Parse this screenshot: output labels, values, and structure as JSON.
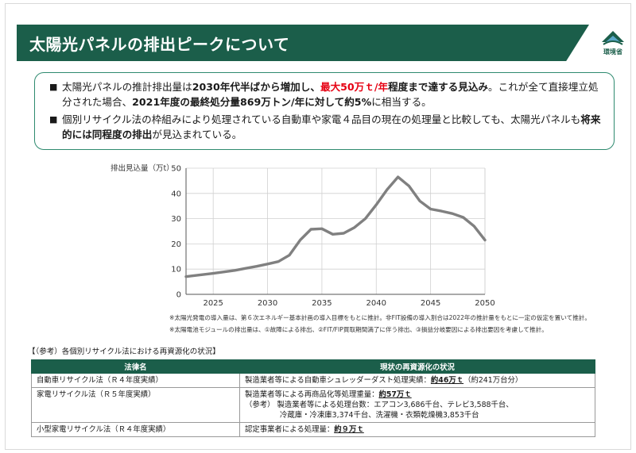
{
  "title": "太陽光パネルの排出ピークについて",
  "logo_label": "環境省",
  "bullets": [
    {
      "parts": [
        {
          "t": "太陽光パネルの推計排出量は",
          "s": "n"
        },
        {
          "t": "2030年代半ばから増加し、",
          "s": "b"
        },
        {
          "t": "最大50万ｔ/年",
          "s": "r"
        },
        {
          "t": "程度まで達する見込み",
          "s": "b"
        },
        {
          "t": "。これが全て直接埋立処分された場合、",
          "s": "n"
        },
        {
          "t": "2021年度の最終処分量869万トン/年に対して約5%",
          "s": "b"
        },
        {
          "t": "に相当する。",
          "s": "n"
        }
      ]
    },
    {
      "parts": [
        {
          "t": "個別リサイクル法の枠組みにより処理されている自動車や家電４品目の現在の処理量と比較しても、太陽光パネルも",
          "s": "n"
        },
        {
          "t": "将来的には同程度の排出",
          "s": "b"
        },
        {
          "t": "が見込まれている。",
          "s": "n"
        }
      ]
    }
  ],
  "chart_data": {
    "type": "line",
    "ylabel": "排出見込量（万t）",
    "xlabel": "",
    "xlim": [
      2022.5,
      2050
    ],
    "ylim": [
      0,
      50
    ],
    "xticks": [
      2025,
      2030,
      2035,
      2040,
      2045,
      2050
    ],
    "yticks": [
      0,
      10,
      20,
      30,
      40,
      50
    ],
    "grid": true,
    "series": [
      {
        "color": "#808080",
        "x": [
          2022.5,
          2023,
          2024,
          2025,
          2026,
          2027,
          2028,
          2029,
          2030,
          2031,
          2032,
          2033,
          2034,
          2035,
          2036,
          2037,
          2038,
          2039,
          2040,
          2041,
          2042,
          2043,
          2044,
          2045,
          2046,
          2047,
          2048,
          2049,
          2050
        ],
        "y": [
          7,
          7.3,
          7.8,
          8.3,
          8.9,
          9.5,
          10.3,
          11.1,
          12,
          13,
          15.5,
          21.5,
          25.8,
          26,
          23.8,
          24.2,
          26.5,
          30,
          35.5,
          41.5,
          46.5,
          43,
          37,
          33.8,
          33,
          32,
          30.5,
          27,
          21.5
        ]
      }
    ]
  },
  "notes": [
    "※太陽光発電の導入量は、第６次エネルギー基本計画の導入目標をもとに推計。非FIT設備の導入割合は2022年の推計量をもとに一定の仮定を置いて推計。",
    "※太陽電池モジュールの排出量は、①故障による排出、②FIT/FIP買取期間満了に伴う排出、③損益分岐要因による排出要因を考慮して推計。"
  ],
  "reference": {
    "title": "【（参考）各個別リサイクル法における再資源化の状況】",
    "headers": [
      "法律名",
      "現状の再資源化の状況"
    ],
    "rows": [
      {
        "law": "自動車リサイクル法（Ｒ４年度実績）",
        "lines": [
          {
            "a": "製造業者等による自動車シュレッダーダスト処理実績：",
            "u": "約46万ｔ",
            "c": "（約241万台分）"
          }
        ]
      },
      {
        "law": "家電リサイクル法（Ｒ５年度実績）",
        "lines": [
          {
            "a": "製造業者等による再商品化等処理重量：",
            "u": "約57万ｔ",
            "c": ""
          },
          {
            "a": "（参考） 製造業者等による処理台数：エアコン3,686千台、テレビ3,588千台、",
            "u": "",
            "c": ""
          },
          {
            "a": "冷蔵庫・冷凍庫3,374千台、洗濯機・衣類乾燥機3,853千台",
            "u": "",
            "c": "",
            "indent": true
          }
        ]
      },
      {
        "law": "小型家電リサイクル法（Ｒ４年度実績）",
        "lines": [
          {
            "a": "認定事業者による処理量：",
            "u": "約９万ｔ",
            "c": ""
          }
        ]
      }
    ]
  }
}
